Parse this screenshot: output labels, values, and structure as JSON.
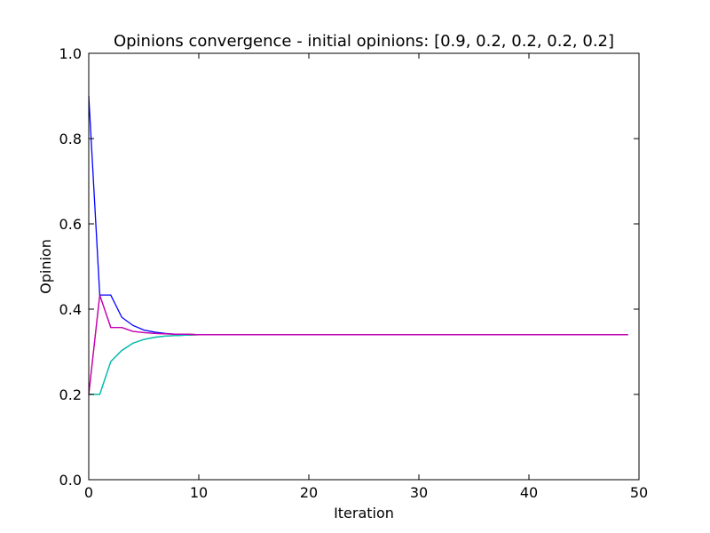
{
  "chart_data": {
    "type": "line",
    "title": "Opinions convergence - initial opinions: [0.9, 0.2, 0.2, 0.2, 0.2]",
    "xlabel": "Iteration",
    "ylabel": "Opinion",
    "xlim": [
      0,
      50
    ],
    "ylim": [
      0.0,
      1.0
    ],
    "xticks": [
      0,
      10,
      20,
      30,
      40,
      50
    ],
    "xtick_labels": [
      "0",
      "10",
      "20",
      "30",
      "40",
      "50"
    ],
    "yticks": [
      0.0,
      0.2,
      0.4,
      0.6,
      0.8,
      1.0
    ],
    "ytick_labels": [
      "0.0",
      "0.2",
      "0.4",
      "0.6",
      "0.8",
      "1.0"
    ],
    "grid": false,
    "x": [
      0,
      1,
      2,
      3,
      4,
      5,
      6,
      7,
      8,
      9,
      10,
      11,
      12,
      13,
      14,
      15,
      16,
      17,
      18,
      19,
      20,
      21,
      22,
      23,
      24,
      25,
      26,
      27,
      28,
      29,
      30,
      31,
      32,
      33,
      34,
      35,
      36,
      37,
      38,
      39,
      40,
      41,
      42,
      43,
      44,
      45,
      46,
      47,
      48,
      49
    ],
    "series": [
      {
        "color": "#0000ff",
        "values": [
          0.9,
          0.433,
          0.433,
          0.381,
          0.362,
          0.351,
          0.346,
          0.343,
          0.341,
          0.341,
          0.34,
          0.34,
          0.34,
          0.34,
          0.34,
          0.34,
          0.34,
          0.34,
          0.34,
          0.34,
          0.34,
          0.34,
          0.34,
          0.34,
          0.34,
          0.34,
          0.34,
          0.34,
          0.34,
          0.34,
          0.34,
          0.34,
          0.34,
          0.34,
          0.34,
          0.34,
          0.34,
          0.34,
          0.34,
          0.34,
          0.34,
          0.34,
          0.34,
          0.34,
          0.34,
          0.34,
          0.34,
          0.34,
          0.34,
          0.34
        ]
      },
      {
        "color": "#008000",
        "values": [
          0.2,
          0.2,
          0.277,
          0.303,
          0.32,
          0.329,
          0.334,
          0.337,
          0.338,
          0.339,
          0.34,
          0.34,
          0.34,
          0.34,
          0.34,
          0.34,
          0.34,
          0.34,
          0.34,
          0.34,
          0.34,
          0.34,
          0.34,
          0.34,
          0.34,
          0.34,
          0.34,
          0.34,
          0.34,
          0.34,
          0.34,
          0.34,
          0.34,
          0.34,
          0.34,
          0.34,
          0.34,
          0.34,
          0.34,
          0.34,
          0.34,
          0.34,
          0.34,
          0.34,
          0.34,
          0.34,
          0.34,
          0.34,
          0.34,
          0.34
        ]
      },
      {
        "color": "#00bfbf",
        "values": [
          0.2,
          0.2,
          0.277,
          0.303,
          0.32,
          0.329,
          0.334,
          0.337,
          0.338,
          0.339,
          0.34,
          0.34,
          0.34,
          0.34,
          0.34,
          0.34,
          0.34,
          0.34,
          0.34,
          0.34,
          0.34,
          0.34,
          0.34,
          0.34,
          0.34,
          0.34,
          0.34,
          0.34,
          0.34,
          0.34,
          0.34,
          0.34,
          0.34,
          0.34,
          0.34,
          0.34,
          0.34,
          0.34,
          0.34,
          0.34,
          0.34,
          0.34,
          0.34,
          0.34,
          0.34,
          0.34,
          0.34,
          0.34,
          0.34,
          0.34
        ]
      },
      {
        "color": "#ff0000",
        "values": [
          0.2,
          0.433,
          0.357,
          0.357,
          0.348,
          0.345,
          0.343,
          0.342,
          0.341,
          0.341,
          0.34,
          0.34,
          0.34,
          0.34,
          0.34,
          0.34,
          0.34,
          0.34,
          0.34,
          0.34,
          0.34,
          0.34,
          0.34,
          0.34,
          0.34,
          0.34,
          0.34,
          0.34,
          0.34,
          0.34,
          0.34,
          0.34,
          0.34,
          0.34,
          0.34,
          0.34,
          0.34,
          0.34,
          0.34,
          0.34,
          0.34,
          0.34,
          0.34,
          0.34,
          0.34,
          0.34,
          0.34,
          0.34,
          0.34,
          0.34
        ]
      },
      {
        "color": "#bf00bf",
        "values": [
          0.2,
          0.433,
          0.357,
          0.357,
          0.348,
          0.345,
          0.343,
          0.342,
          0.341,
          0.341,
          0.34,
          0.34,
          0.34,
          0.34,
          0.34,
          0.34,
          0.34,
          0.34,
          0.34,
          0.34,
          0.34,
          0.34,
          0.34,
          0.34,
          0.34,
          0.34,
          0.34,
          0.34,
          0.34,
          0.34,
          0.34,
          0.34,
          0.34,
          0.34,
          0.34,
          0.34,
          0.34,
          0.34,
          0.34,
          0.34,
          0.34,
          0.34,
          0.34,
          0.34,
          0.34,
          0.34,
          0.34,
          0.34,
          0.34,
          0.34
        ]
      }
    ]
  }
}
